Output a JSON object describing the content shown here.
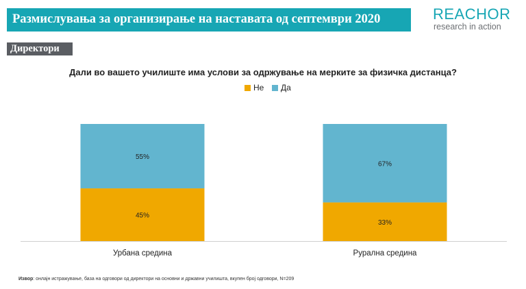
{
  "header": {
    "title": "Размислувања за организирање на наставата од септември 2020",
    "logo_main": "REACHOR",
    "logo_sub": "research in action"
  },
  "section_label": "Директори",
  "question": "Дали во вашето училиште има услови за одржување на мерките за физичка дистанца?",
  "source": {
    "label": "Извор",
    "text": ": онлајн истражување, база на одговори од директори на основни и државни училишта, вкупен број одговори, N=209"
  },
  "colors": {
    "accent": "#17a6b4",
    "ne": "#f0a800",
    "da": "#62b5cf"
  },
  "chart_data": {
    "type": "bar",
    "stacked": true,
    "percent": true,
    "categories": [
      "Урбана средина",
      "Рурална средина"
    ],
    "series": [
      {
        "name": "Не",
        "values": [
          45,
          33
        ],
        "labels": [
          "45%",
          "33%"
        ],
        "color": "#f0a800"
      },
      {
        "name": "Да",
        "values": [
          55,
          67
        ],
        "labels": [
          "55%",
          "67%"
        ],
        "color": "#62b5cf"
      }
    ],
    "legend_position": "top-center",
    "ylim": [
      0,
      100
    ],
    "grid": false
  }
}
